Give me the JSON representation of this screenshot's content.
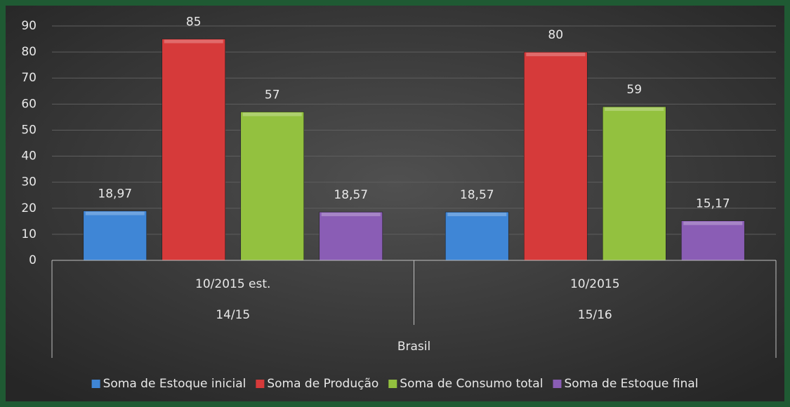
{
  "chart_data": {
    "type": "bar",
    "categories": [
      "14/15",
      "15/16"
    ],
    "category_groups": [
      "10/2015 est.",
      "10/2015"
    ],
    "top_category": "Brasil",
    "series": [
      {
        "name": "Soma de Estoque inicial",
        "color": "#3f86d6",
        "values": [
          18.97,
          18.57
        ],
        "value_labels": [
          "18,97",
          "18,57"
        ]
      },
      {
        "name": "Soma de Produção",
        "color": "#d63a3a",
        "values": [
          85,
          80
        ],
        "value_labels": [
          "85",
          "80"
        ]
      },
      {
        "name": "Soma de Consumo total",
        "color": "#93c13f",
        "values": [
          57,
          59
        ],
        "value_labels": [
          "57",
          "59"
        ]
      },
      {
        "name": "Soma de Estoque final",
        "color": "#8a5db5",
        "values": [
          18.57,
          15.17
        ],
        "value_labels": [
          "18,57",
          "15,17"
        ]
      }
    ],
    "ylim": [
      0,
      90
    ],
    "yticks": [
      0,
      10,
      20,
      30,
      40,
      50,
      60,
      70,
      80,
      90
    ],
    "grid": true,
    "legend": "bottom"
  }
}
